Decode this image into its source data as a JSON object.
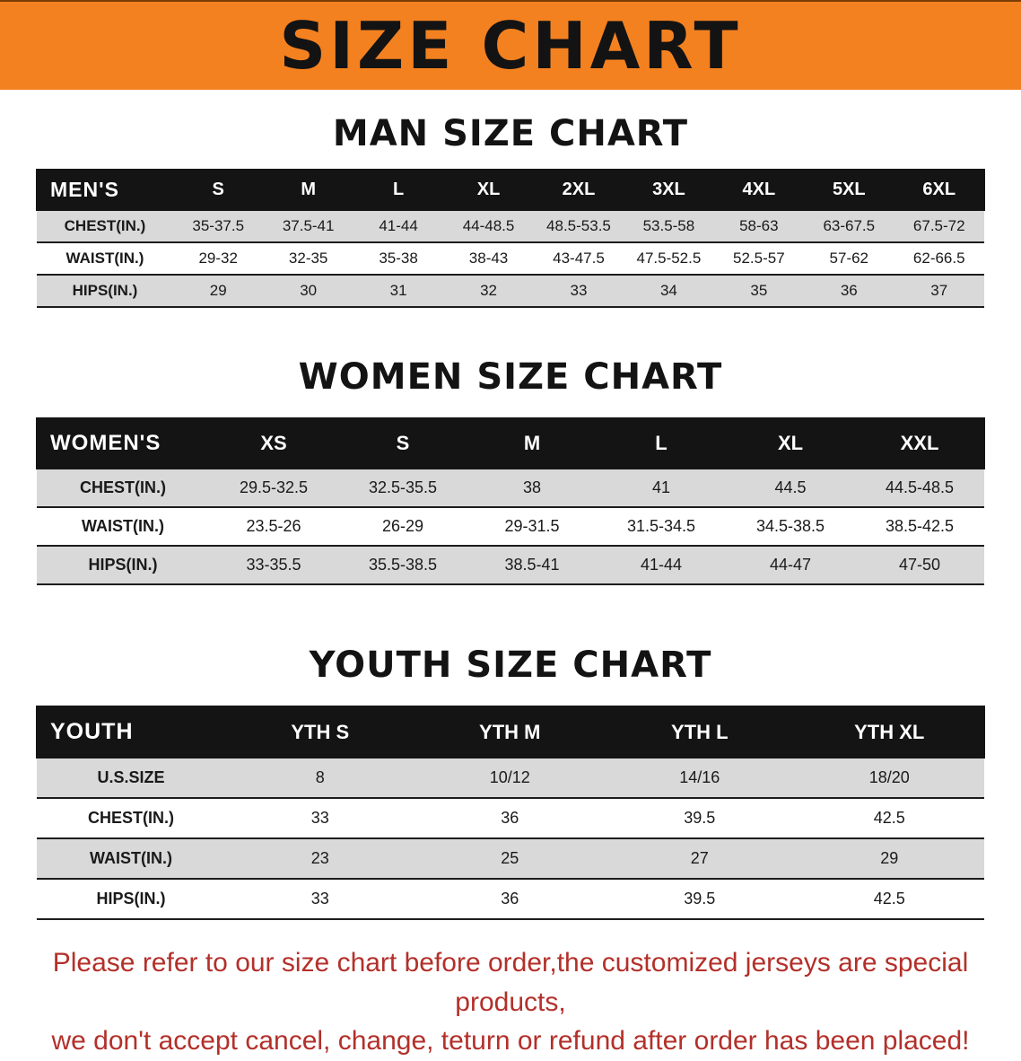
{
  "banner": {
    "title": "SIZE CHART"
  },
  "colors": {
    "banner_bg": "#f48120",
    "header_bg": "#141414",
    "row_alt": "#d9d9d9",
    "footer_text": "#b3302a"
  },
  "sections": [
    {
      "heading": "MAN SIZE CHART",
      "table": {
        "corner_label": "MEN'S",
        "columns": [
          "S",
          "M",
          "L",
          "XL",
          "2XL",
          "3XL",
          "4XL",
          "5XL",
          "6XL"
        ],
        "rows": [
          {
            "label": "CHEST(IN.)",
            "values": [
              "35-37.5",
              "37.5-41",
              "41-44",
              "44-48.5",
              "48.5-53.5",
              "53.5-58",
              "58-63",
              "63-67.5",
              "67.5-72"
            ]
          },
          {
            "label": "WAIST(IN.)",
            "values": [
              "29-32",
              "32-35",
              "35-38",
              "38-43",
              "43-47.5",
              "47.5-52.5",
              "52.5-57",
              "57-62",
              "62-66.5"
            ]
          },
          {
            "label": "HIPS(IN.)",
            "values": [
              "29",
              "30",
              "31",
              "32",
              "33",
              "34",
              "35",
              "36",
              "37"
            ]
          }
        ]
      }
    },
    {
      "heading": "WOMEN SIZE CHART",
      "table": {
        "corner_label": "WOMEN'S",
        "columns": [
          "XS",
          "S",
          "M",
          "L",
          "XL",
          "XXL"
        ],
        "rows": [
          {
            "label": "CHEST(IN.)",
            "values": [
              "29.5-32.5",
              "32.5-35.5",
              "38",
              "41",
              "44.5",
              "44.5-48.5"
            ]
          },
          {
            "label": "WAIST(IN.)",
            "values": [
              "23.5-26",
              "26-29",
              "29-31.5",
              "31.5-34.5",
              "34.5-38.5",
              "38.5-42.5"
            ]
          },
          {
            "label": "HIPS(IN.)",
            "values": [
              "33-35.5",
              "35.5-38.5",
              "38.5-41",
              "41-44",
              "44-47",
              "47-50"
            ]
          }
        ]
      }
    },
    {
      "heading": "YOUTH SIZE CHART",
      "table": {
        "corner_label": "YOUTH",
        "columns": [
          "YTH S",
          "YTH M",
          "YTH L",
          "YTH XL"
        ],
        "rows": [
          {
            "label": "U.S.SIZE",
            "values": [
              "8",
              "10/12",
              "14/16",
              "18/20"
            ]
          },
          {
            "label": "CHEST(IN.)",
            "values": [
              "33",
              "36",
              "39.5",
              "42.5"
            ]
          },
          {
            "label": "WAIST(IN.)",
            "values": [
              "23",
              "25",
              "27",
              "29"
            ]
          },
          {
            "label": "HIPS(IN.)",
            "values": [
              "33",
              "36",
              "39.5",
              "42.5"
            ]
          }
        ]
      }
    }
  ],
  "footer": {
    "line1": "Please refer to our size chart before order,the customized jerseys are special products,",
    "line2": "we don't accept cancel, change, teturn or refund after order has been placed!"
  }
}
